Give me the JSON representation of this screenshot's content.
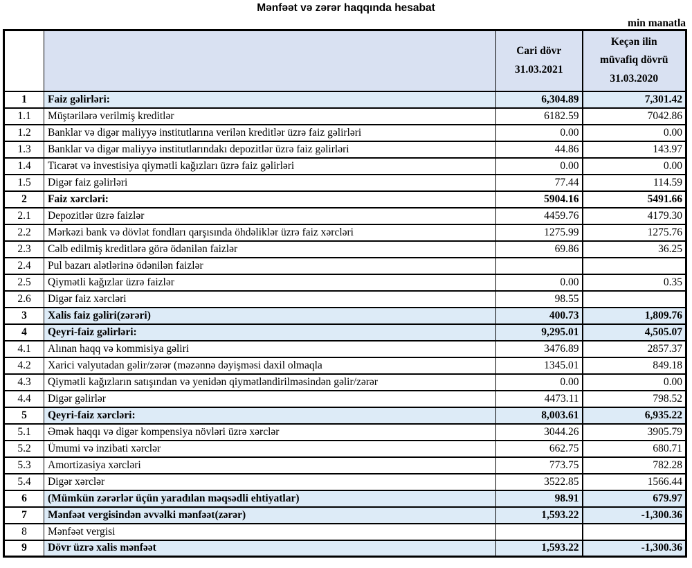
{
  "title": "Mənfəət və zərər haqqında hesabat",
  "unit_label": "min manatla",
  "colors": {
    "header_bg": "#d9e1f2",
    "section_row_bg": "#ddebf7",
    "border": "#000000",
    "text": "#000000",
    "background": "#ffffff"
  },
  "table": {
    "header": {
      "number_col": "",
      "description_col": "",
      "current_period": "Cari dövr\n31.03.2021",
      "previous_period": "Keçən ilin\nmüvafiq dövrü\n31.03.2020"
    },
    "rows": [
      {
        "no": "1",
        "desc": "Faiz gəlirləri:",
        "cur": "6,304.89",
        "prev": "7,301.42",
        "bold": true,
        "fill": true
      },
      {
        "no": "1.1",
        "desc": "Müştərilərə verilmiş kreditlər",
        "cur": "6182.59",
        "prev": "7042.86",
        "bold": false,
        "fill": false
      },
      {
        "no": "1.2",
        "desc": "Banklar və digər maliyyə institutlarına verilən kreditlər üzrə faiz gəlirləri",
        "cur": "0.00",
        "prev": "0.00",
        "bold": false,
        "fill": false
      },
      {
        "no": "1.3",
        "desc": "Banklar və digər maliyyə institutlarındakı depozitlər üzrə faiz gəlirləri",
        "cur": "44.86",
        "prev": "143.97",
        "bold": false,
        "fill": false
      },
      {
        "no": "1.4",
        "desc": "Ticarət və investisiya qiymətli kağızları üzrə faiz gəlirləri",
        "cur": "0.00",
        "prev": "0.00",
        "bold": false,
        "fill": false
      },
      {
        "no": "1.5",
        "desc": "Digər faiz gəlirləri",
        "cur": "77.44",
        "prev": "114.59",
        "bold": false,
        "fill": false
      },
      {
        "no": "2",
        "desc": "Faiz xərcləri:",
        "cur": "5904.16",
        "prev": "5491.66",
        "bold": true,
        "fill": false
      },
      {
        "no": "2.1",
        "desc": "Depozitlər üzrə faizlər",
        "cur": "4459.76",
        "prev": "4179.30",
        "bold": false,
        "fill": false
      },
      {
        "no": "2.2",
        "desc": "Mərkəzi bank və dövlət fondları qarşısında öhdəliklər üzrə faiz xərcləri",
        "cur": "1275.99",
        "prev": "1275.76",
        "bold": false,
        "fill": false
      },
      {
        "no": "2.3",
        "desc": "Cəlb edilmiş kreditlərə görə ödənilən faizlər",
        "cur": "69.86",
        "prev": "36.25",
        "bold": false,
        "fill": false
      },
      {
        "no": "2.4",
        "desc": "Pul bazarı alətlərinə ödənilən faizlər",
        "cur": "",
        "prev": "",
        "bold": false,
        "fill": false
      },
      {
        "no": "2.5",
        "desc": "Qiymətli kağızlar üzrə faizlər",
        "cur": "0.00",
        "prev": "0.35",
        "bold": false,
        "fill": false
      },
      {
        "no": "2.6",
        "desc": "Digər faiz xərcləri",
        "cur": "98.55",
        "prev": "",
        "bold": false,
        "fill": false
      },
      {
        "no": "3",
        "desc": "Xalis faiz gəliri(zərəri)",
        "cur": "400.73",
        "prev": "1,809.76",
        "bold": true,
        "fill": true
      },
      {
        "no": "4",
        "desc": "Qeyri-faiz gəlirləri:",
        "cur": "9,295.01",
        "prev": "4,505.07",
        "bold": true,
        "fill": true
      },
      {
        "no": "4.1",
        "desc": "Alınan haqq və kommisiya gəliri",
        "cur": "3476.89",
        "prev": "2857.37",
        "bold": false,
        "fill": false
      },
      {
        "no": "4.2",
        "desc": "Xarici valyutadan gəlir/zərər (məzənnə dəyişməsi daxil olmaqla",
        "cur": "1345.01",
        "prev": "849.18",
        "bold": false,
        "fill": false
      },
      {
        "no": "4.3",
        "desc": "Qiymətli kağızların satışından və yenidən qiymətləndirilməsindən gəlir/zərər",
        "cur": "0.00",
        "prev": "0.00",
        "bold": false,
        "fill": false
      },
      {
        "no": "4.4",
        "desc": "Digər gəlirlər",
        "cur": "4473.11",
        "prev": "798.52",
        "bold": false,
        "fill": false
      },
      {
        "no": "5",
        "desc": "Qeyri-faiz xərcləri:",
        "cur": "8,003.61",
        "prev": "6,935.22",
        "bold": true,
        "fill": true
      },
      {
        "no": "5.1",
        "desc": "Əmək haqqı və digər kompensiya növləri üzrə xərclər",
        "cur": "3044.26",
        "prev": "3905.79",
        "bold": false,
        "fill": false
      },
      {
        "no": "5.2",
        "desc": "Ümumi və inzibati xərclər",
        "cur": "662.75",
        "prev": "680.71",
        "bold": false,
        "fill": false
      },
      {
        "no": "5.3",
        "desc": "Amortizasiya xərcləri",
        "cur": "773.75",
        "prev": "782.28",
        "bold": false,
        "fill": false
      },
      {
        "no": "5.4",
        "desc": "Digər xərclər",
        "cur": "3522.85",
        "prev": "1566.44",
        "bold": false,
        "fill": false
      },
      {
        "no": "6",
        "desc": "(Mümkün zərərlər üçün yaradılan məqsədli ehtiyatlar)",
        "cur": "98.91",
        "prev": "679.97",
        "bold": true,
        "fill": true
      },
      {
        "no": "7",
        "desc": "Mənfəət vergisindən əvvəlki mənfəət(zərər)",
        "cur": "1,593.22",
        "prev": "-1,300.36",
        "bold": true,
        "fill": true
      },
      {
        "no": "8",
        "desc": "Mənfəət vergisi",
        "cur": "",
        "prev": "",
        "bold": false,
        "fill": false
      },
      {
        "no": "9",
        "desc": "Dövr üzrə xalis mənfəət",
        "cur": "1,593.22",
        "prev": "-1,300.36",
        "bold": true,
        "fill": true
      }
    ]
  }
}
